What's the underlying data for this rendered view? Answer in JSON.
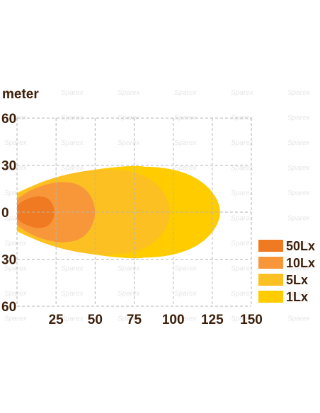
{
  "chart_data": {
    "type": "area",
    "title": "",
    "ylabel": "meter",
    "xlabel": "",
    "xlim": [
      0,
      150
    ],
    "ylim": [
      -60,
      60
    ],
    "x_ticks": [
      25,
      50,
      75,
      100,
      125,
      150
    ],
    "y_ticks": [
      {
        "value": 60,
        "label": "60"
      },
      {
        "value": 30,
        "label": "30"
      },
      {
        "value": 0,
        "label": "0"
      },
      {
        "value": -30,
        "label": "30"
      },
      {
        "value": -60,
        "label": "60"
      }
    ],
    "grid": true,
    "grid_style": "dashed",
    "legend_position": "right",
    "watermark": "Sparex",
    "series": [
      {
        "name": "1Lx",
        "color": "#FFCC00",
        "reach": 130,
        "max_half_width": 29
      },
      {
        "name": "5Lx",
        "color": "#FCC022",
        "reach": 98,
        "max_half_width": 27
      },
      {
        "name": "10Lx",
        "color": "#F7973A",
        "reach": 50,
        "max_half_width": 19
      },
      {
        "name": "50Lx",
        "color": "#F07A22",
        "reach": 24,
        "max_half_width": 10
      }
    ]
  }
}
